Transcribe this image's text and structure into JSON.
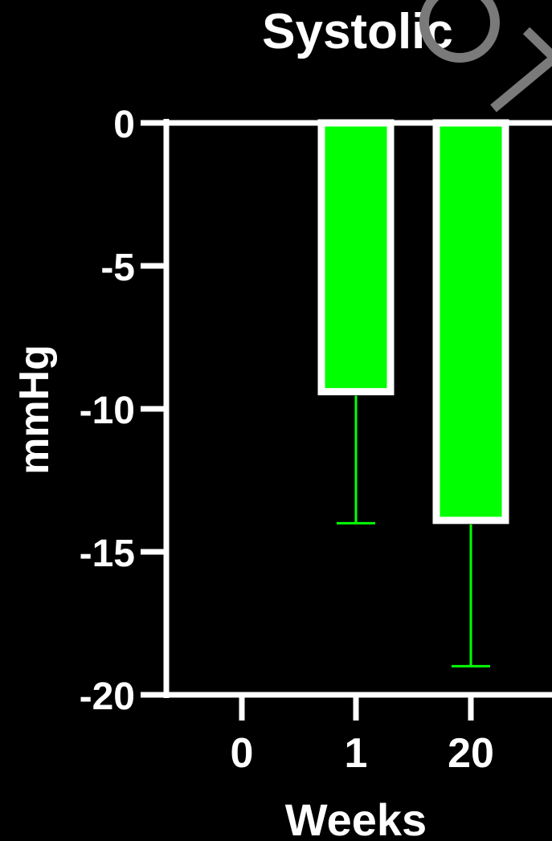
{
  "chart_data": {
    "type": "bar",
    "title": "Systolic",
    "xlabel": "Weeks",
    "ylabel": "mmHg",
    "categories": [
      "0",
      "1",
      "20"
    ],
    "values": [
      0,
      -9.4,
      -13.9
    ],
    "error_low": [
      0,
      -14.0,
      -19.0
    ],
    "ylim": [
      -20,
      0
    ],
    "yticks": [
      0,
      -5,
      -10,
      -15,
      -20
    ],
    "ytick_labels": [
      "0",
      "-5",
      "-10",
      "-15",
      "-20"
    ],
    "colors": {
      "bar_fill": "#00ff00",
      "bar_edge": "#ffffff",
      "error_bar": "#00ff00",
      "axis": "#ffffff",
      "background": "#000000"
    },
    "grid": false,
    "legend": "none"
  }
}
